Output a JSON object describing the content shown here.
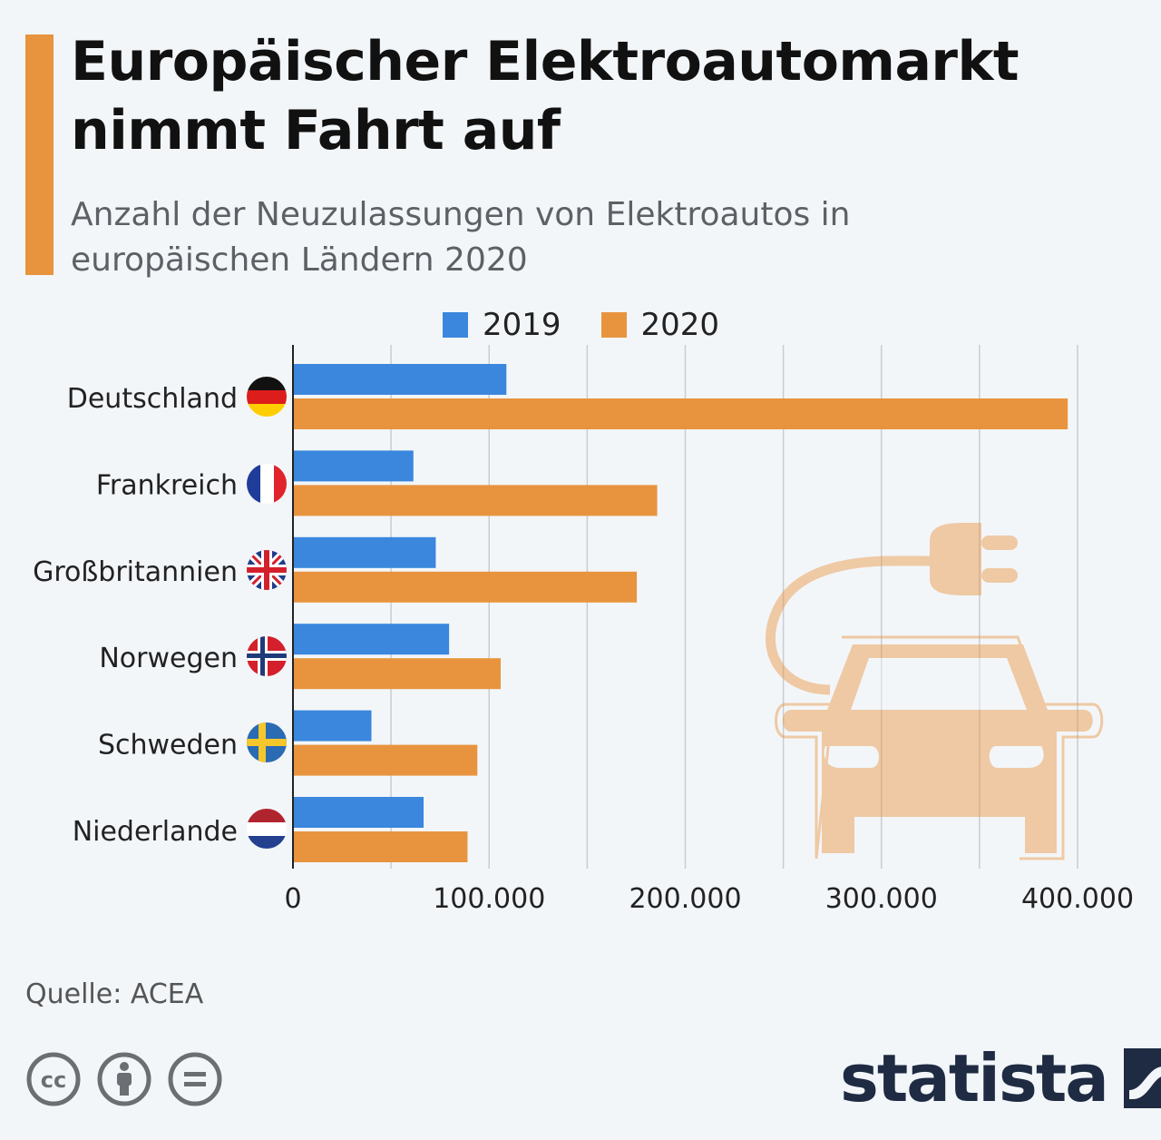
{
  "title": "Europäischer Elektroautomarkt nimmt Fahrt auf",
  "subtitle": "Anzahl der Neuzulassungen von Elektroautos in europäischen Ländern 2020",
  "source": "Quelle: ACEA",
  "brand": "statista",
  "colors": {
    "series_2019": "#3a87dd",
    "series_2020": "#e8943f",
    "accent": "#e8943f",
    "background": "#f3f6f9"
  },
  "icons": [
    "flag-germany-icon",
    "flag-france-icon",
    "flag-uk-icon",
    "flag-norway-icon",
    "flag-sweden-icon",
    "flag-netherlands-icon",
    "ev-car-plug-icon",
    "cc-icon",
    "by-icon",
    "nd-icon",
    "statista-logo-icon"
  ],
  "chart_data": {
    "type": "bar",
    "orientation": "horizontal",
    "categories": [
      "Deutschland",
      "Frankreich",
      "Großbritannien",
      "Norwegen",
      "Schweden",
      "Niederlande"
    ],
    "series": [
      {
        "name": "2019",
        "color": "#3a87dd",
        "values": [
          108800,
          61400,
          72800,
          79600,
          40000,
          66600
        ]
      },
      {
        "name": "2020",
        "color": "#e8943f",
        "values": [
          395000,
          185700,
          175300,
          105900,
          94000,
          89000
        ]
      }
    ],
    "xlim": [
      0,
      400000
    ],
    "xticks": [
      0,
      100000,
      200000,
      300000,
      400000
    ],
    "xtick_labels": [
      "0",
      "100.000",
      "200.000",
      "300.000",
      "400.000"
    ],
    "grid": true,
    "legend": "top"
  }
}
